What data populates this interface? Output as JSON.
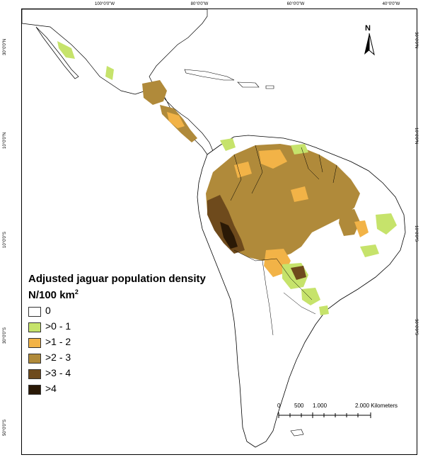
{
  "map": {
    "top_ticks": [
      "100°0'0\"W",
      "80°0'0\"W",
      "60°0'0\"W",
      "40°0'0\"W"
    ],
    "left_ticks": [
      "30°0'0\"N",
      "10°0'0\"N",
      "10°0'0\"S",
      "30°0'0\"S",
      "50°0'0\"S"
    ],
    "right_ticks": [
      "30°0'0\"N",
      "10°0'0\"N",
      "10°0'0\"S",
      "30°0'0\"S"
    ]
  },
  "north_arrow": {
    "label": "N"
  },
  "legend": {
    "title": "Adjusted jaguar population density",
    "unit_prefix": "N/100 km",
    "unit_sup": "2",
    "items": [
      {
        "label": "0",
        "color": "#ffffff"
      },
      {
        "label": ">0 - 1",
        "color": "#c6e36b"
      },
      {
        "label": ">1 - 2",
        "color": "#f2b347"
      },
      {
        "label": ">2 - 3",
        "color": "#b08a3a"
      },
      {
        "label": ">3 - 4",
        "color": "#6e4a1c"
      },
      {
        "label": ">4",
        "color": "#2a1906"
      }
    ]
  },
  "scale_bar": {
    "labels": [
      "0",
      "500",
      "1.000",
      "2.000 Kilometers"
    ]
  },
  "colors": {
    "land_outline": "#000000",
    "density_0_1": "#c6e36b",
    "density_1_2": "#f2b347",
    "density_2_3": "#b08a3a",
    "density_3_4": "#6e4a1c",
    "density_4_plus": "#2a1906"
  }
}
